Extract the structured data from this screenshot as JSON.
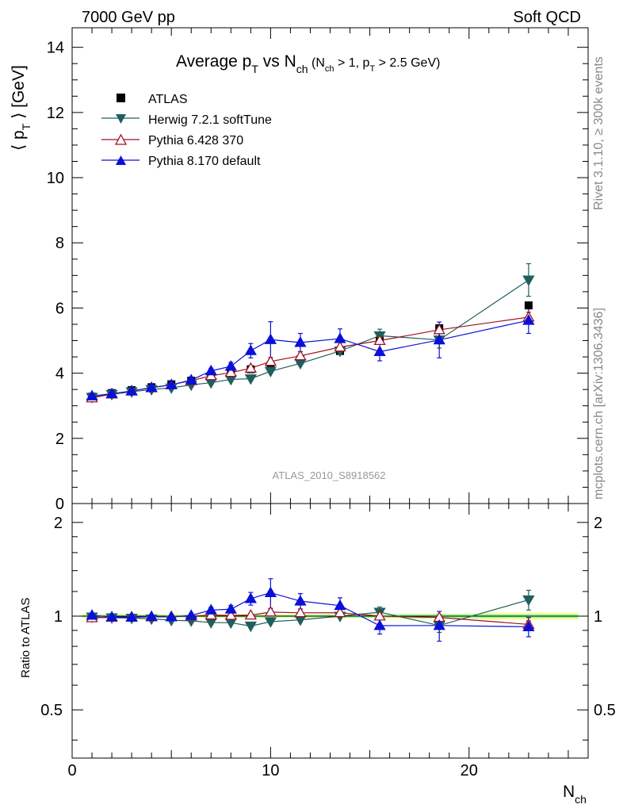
{
  "header": {
    "left": "7000 GeV pp",
    "right": "Soft QCD"
  },
  "side_labels": {
    "rivet": "Rivet 3.1.10, ≥ 300k events",
    "mcplots": "mcplots.cern.ch [arXiv:1306.3436]"
  },
  "watermark": "ATLAS_2010_S8918562",
  "chart_data": {
    "type": "line",
    "title": {
      "main": "Average p",
      "main_sub": "T",
      "mid": " vs N",
      "mid_sub": "ch",
      "cond1": " (N",
      "cond1_sub": "ch",
      "cond2": " > 1, p",
      "cond2_sub": "T",
      "cond3": " > 2.5 GeV)"
    },
    "ylabel": {
      "pre": "⟨ p",
      "sub": "T",
      "post": " ⟩  [GeV]"
    },
    "xlabel": {
      "main": "N",
      "sub": "ch"
    },
    "ratio_ylabel": "Ratio to ATLAS",
    "xlim": [
      0,
      26
    ],
    "ylim": [
      0,
      14.6
    ],
    "ratio_ylim": [
      0.35,
      2.3
    ],
    "x_ticks": [
      "0",
      "10",
      "20"
    ],
    "y_ticks": [
      "0",
      "2",
      "4",
      "6",
      "8",
      "10",
      "12",
      "14"
    ],
    "ratio_ticks": [
      "0.5",
      "1",
      "2"
    ],
    "bins": [
      [
        0.5,
        1.5
      ],
      [
        1.5,
        2.5
      ],
      [
        2.5,
        3.5
      ],
      [
        3.5,
        4.5
      ],
      [
        4.5,
        5.5
      ],
      [
        5.5,
        6.5
      ],
      [
        6.5,
        7.5
      ],
      [
        7.5,
        8.5
      ],
      [
        8.5,
        9.5
      ],
      [
        9.5,
        10.5
      ],
      [
        10.5,
        12.5
      ],
      [
        12.5,
        14.5
      ],
      [
        14.5,
        16.5
      ],
      [
        16.5,
        20.5
      ],
      [
        20.5,
        25.5
      ]
    ],
    "x": [
      1,
      2,
      3,
      4,
      5,
      6,
      7,
      8,
      9,
      10,
      11.5,
      13.5,
      15.5,
      18.5,
      23
    ],
    "data": {
      "name": "ATLAS",
      "values": [
        3.28,
        3.39,
        3.48,
        3.57,
        3.66,
        3.77,
        3.89,
        4.0,
        4.12,
        4.23,
        4.42,
        4.68,
        5.0,
        5.38,
        6.08
      ],
      "band_stat": [
        0.03,
        0.03,
        0.03,
        0.03,
        0.03,
        0.03,
        0.035,
        0.035,
        0.04,
        0.04,
        0.04,
        0.05,
        0.06,
        0.08,
        0.09
      ],
      "band_total": [
        0.05,
        0.05,
        0.05,
        0.05,
        0.05,
        0.05,
        0.055,
        0.055,
        0.06,
        0.06,
        0.06,
        0.07,
        0.08,
        0.1,
        0.16
      ]
    },
    "series": [
      {
        "name": "Herwig 7.2.1 softTune",
        "color": "#1f5f5f",
        "marker": "triangle-down-filled",
        "values": [
          3.26,
          3.35,
          3.43,
          3.5,
          3.55,
          3.64,
          3.71,
          3.81,
          3.83,
          4.06,
          4.3,
          4.68,
          5.15,
          5.02,
          6.86
        ],
        "errors": [
          0.02,
          0.02,
          0.02,
          0.02,
          0.03,
          0.03,
          0.03,
          0.04,
          0.05,
          0.05,
          0.06,
          0.08,
          0.2,
          0.25,
          0.5
        ]
      },
      {
        "name": "Pythia 6.428 370",
        "color": "#a01020",
        "marker": "triangle-up-open",
        "values": [
          3.24,
          3.36,
          3.46,
          3.55,
          3.65,
          3.77,
          3.92,
          4.02,
          4.15,
          4.36,
          4.53,
          4.8,
          5.0,
          5.33,
          5.72
        ],
        "errors": [
          0.02,
          0.02,
          0.02,
          0.02,
          0.02,
          0.03,
          0.03,
          0.03,
          0.04,
          0.05,
          0.06,
          0.07,
          0.08,
          0.1,
          0.15
        ]
      },
      {
        "name": "Pythia 8.170 default",
        "color": "#0a10d8",
        "marker": "triangle-up-filled",
        "values": [
          3.3,
          3.37,
          3.45,
          3.56,
          3.64,
          3.79,
          4.07,
          4.21,
          4.69,
          5.03,
          4.94,
          5.06,
          4.66,
          5.02,
          5.62
        ],
        "errors": [
          0.03,
          0.03,
          0.04,
          0.04,
          0.05,
          0.06,
          0.08,
          0.12,
          0.22,
          0.55,
          0.28,
          0.3,
          0.28,
          0.55,
          0.4
        ]
      }
    ],
    "legend_position": "top-left"
  }
}
